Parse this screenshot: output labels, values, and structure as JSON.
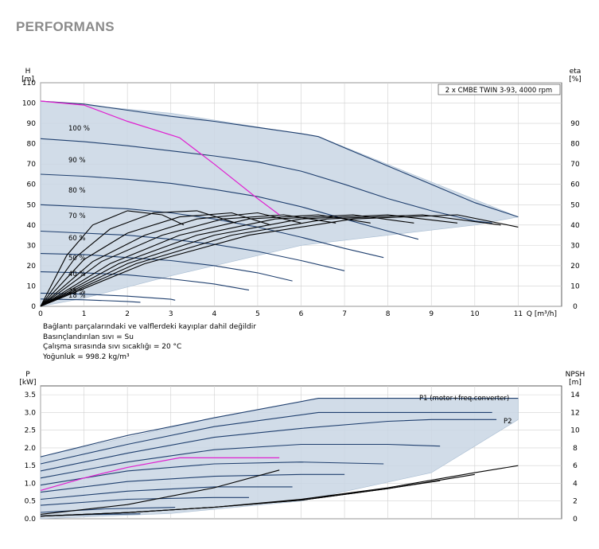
{
  "page_title": "PERFORMANS",
  "notes": [
    "Bağlantı parçalarındaki ve valflerdeki kayıplar dahil değildir",
    "Basınçlandırılan sıvı = Su",
    "Çalışma sırasında sıvı sıcaklığı = 20 °C",
    "Yoğunluk = 998.2 kg/m³"
  ],
  "colors": {
    "curve": "#1f3f6e",
    "envelope": "#c9d6e4",
    "envelope_edge": "#a9bdd2",
    "bep_line": "#e020d0",
    "grid": "#d0d0d0",
    "efficiency": "#000000"
  },
  "chart_data": [
    {
      "type": "line",
      "title": "2 x CMBE TWIN 3-93, 4000 rpm",
      "xlabel": "Q [m³/h]",
      "ylabel": "H\n[m]",
      "y2label": "eta\n[%]",
      "xlim": [
        0,
        12
      ],
      "ylim": [
        0,
        110
      ],
      "y2lim": [
        0,
        110
      ],
      "x_ticks": [
        0,
        1,
        2,
        3,
        4,
        5,
        6,
        7,
        8,
        9,
        10,
        11
      ],
      "y_ticks": [
        0,
        10,
        20,
        30,
        40,
        50,
        60,
        70,
        80,
        90,
        100,
        110
      ],
      "y2_ticks": [
        0,
        10,
        20,
        30,
        40,
        50,
        60,
        70,
        80,
        90
      ],
      "grid": true,
      "speed_labels": [
        "100 %",
        "90 %",
        "80 %",
        "70 %",
        "60 %",
        "50 %",
        "40 %",
        "25 %",
        "18 %"
      ],
      "speed_curves": [
        {
          "name": "100 %",
          "x": [
            0,
            1,
            2,
            3,
            4,
            5,
            6,
            6.4,
            7,
            8,
            9,
            10,
            11
          ],
          "y": [
            101,
            99.5,
            96.5,
            93.5,
            91,
            88,
            85,
            83.5,
            78,
            69,
            60,
            51,
            44
          ]
        },
        {
          "name": "90 %",
          "x": [
            0,
            1,
            2,
            3,
            4,
            5,
            6,
            7,
            8,
            9,
            10,
            10.4
          ],
          "y": [
            82.5,
            81,
            79,
            76.5,
            74,
            71,
            66.5,
            60,
            53,
            47,
            42,
            41
          ]
        },
        {
          "name": "80 %",
          "x": [
            0,
            1,
            2,
            3,
            4,
            5,
            6,
            7,
            8,
            8.7
          ],
          "y": [
            65,
            64,
            62.5,
            60.5,
            57.5,
            54,
            49,
            43,
            37,
            33
          ]
        },
        {
          "name": "70 %",
          "x": [
            0,
            1,
            2,
            3,
            4,
            5,
            6,
            7,
            7.9
          ],
          "y": [
            50,
            49,
            48,
            46,
            43,
            39,
            34,
            28.5,
            24
          ]
        },
        {
          "name": "60 %",
          "x": [
            0,
            1,
            2,
            3,
            4,
            5,
            6,
            7
          ],
          "y": [
            37,
            36,
            35,
            33,
            30.5,
            27,
            22.5,
            17.5
          ]
        },
        {
          "name": "50 %",
          "x": [
            0,
            1,
            2,
            3,
            4,
            5,
            5.8
          ],
          "y": [
            26,
            25.5,
            24,
            22.5,
            20,
            16.5,
            12.5
          ]
        },
        {
          "name": "40 %",
          "x": [
            0,
            1,
            2,
            3,
            4,
            4.8
          ],
          "y": [
            17,
            16.5,
            15.5,
            13.5,
            11,
            8
          ]
        },
        {
          "name": "25 %",
          "x": [
            0,
            1,
            2,
            3,
            3.1
          ],
          "y": [
            6.5,
            6,
            5,
            3.5,
            3
          ]
        },
        {
          "name": "18 %",
          "x": [
            0,
            1,
            2,
            2.3
          ],
          "y": [
            3.6,
            3.2,
            2.4,
            2
          ]
        }
      ],
      "envelope": {
        "x": [
          0,
          3,
          6.4,
          11,
          10,
          6,
          3,
          1,
          0
        ],
        "y": [
          101,
          95,
          83.5,
          44,
          40,
          30,
          15,
          4,
          0
        ]
      },
      "bep_line": {
        "x": [
          0,
          1,
          2,
          3.2,
          4,
          5,
          5.5
        ],
        "y": [
          101,
          99,
          91,
          83,
          70,
          53,
          45
        ]
      },
      "efficiency_curves": [
        {
          "x": [
            0,
            0.6,
            1.2,
            2,
            2.8,
            3.3
          ],
          "y": [
            0,
            25,
            40,
            47,
            45,
            40
          ]
        },
        {
          "x": [
            0,
            0.8,
            1.6,
            2.6,
            3.6,
            4.5
          ],
          "y": [
            0,
            24,
            38,
            46,
            47,
            41
          ]
        },
        {
          "x": [
            0,
            1,
            2,
            3.2,
            4.4,
            5.3
          ],
          "y": [
            0,
            23,
            36,
            44,
            46,
            40
          ]
        },
        {
          "x": [
            0,
            1.2,
            2.4,
            3.6,
            5,
            6
          ],
          "y": [
            0,
            22,
            35,
            43,
            46,
            41
          ]
        },
        {
          "x": [
            0,
            1.4,
            2.8,
            4.2,
            5.6,
            6.8
          ],
          "y": [
            0,
            22,
            35,
            43,
            45,
            41
          ]
        },
        {
          "x": [
            0,
            1.6,
            3.2,
            4.8,
            6.4,
            7.6
          ],
          "y": [
            0,
            21,
            35,
            43,
            45,
            41
          ]
        },
        {
          "x": [
            0,
            1.8,
            3.6,
            5.4,
            7.2,
            8.6
          ],
          "y": [
            0,
            21,
            35,
            43,
            45,
            41
          ]
        },
        {
          "x": [
            0,
            2,
            4,
            6,
            8,
            9.6
          ],
          "y": [
            0,
            21,
            35,
            43,
            45,
            41
          ]
        },
        {
          "x": [
            0,
            2.2,
            4.4,
            6.6,
            8.8,
            10.6
          ],
          "y": [
            0,
            21,
            35,
            43,
            45,
            40
          ]
        },
        {
          "x": [
            0,
            2.4,
            4.8,
            7.2,
            9.6,
            11
          ],
          "y": [
            0,
            21,
            35,
            43,
            45,
            39
          ]
        }
      ]
    },
    {
      "type": "line",
      "title": "",
      "xlabel": "",
      "ylabel": "P\n[kW]",
      "y2label": "NPSH\n[m]",
      "xlim": [
        0,
        12
      ],
      "ylim": [
        0,
        3.75
      ],
      "y2lim": [
        0,
        15
      ],
      "y_ticks": [
        0,
        0.5,
        1.0,
        1.5,
        2.0,
        2.5,
        3.0,
        3.5
      ],
      "y_tick_labels": [
        "0.0",
        "0.5",
        "1.0",
        "1.5",
        "2.0",
        "2.5",
        "3.0",
        "3.5"
      ],
      "y2_ticks": [
        0,
        2,
        4,
        6,
        8,
        10,
        12,
        14
      ],
      "grid": true,
      "series_labels": [
        "P1 (motor+freq.converter)",
        "P2"
      ],
      "power_curves": [
        {
          "x": [
            0,
            2,
            4,
            6.4,
            8,
            10,
            11
          ],
          "y": [
            1.75,
            2.35,
            2.85,
            3.4,
            3.4,
            3.4,
            3.4
          ]
        },
        {
          "x": [
            0,
            2,
            4,
            6.4,
            8,
            10,
            10.4
          ],
          "y": [
            1.55,
            2.1,
            2.6,
            3.0,
            3.0,
            3.0,
            3.0
          ]
        },
        {
          "x": [
            0,
            2,
            4,
            6,
            8,
            9,
            10.5
          ],
          "y": [
            1.35,
            1.85,
            2.3,
            2.55,
            2.75,
            2.8,
            2.8
          ]
        },
        {
          "x": [
            0,
            2,
            4,
            6,
            8,
            9.2
          ],
          "y": [
            1.15,
            1.6,
            1.95,
            2.1,
            2.1,
            2.05
          ]
        },
        {
          "x": [
            0,
            2,
            4,
            6,
            7.9
          ],
          "y": [
            0.95,
            1.35,
            1.55,
            1.6,
            1.55
          ]
        },
        {
          "x": [
            0,
            2,
            4,
            6,
            7
          ],
          "y": [
            0.75,
            1.05,
            1.2,
            1.25,
            1.25
          ]
        },
        {
          "x": [
            0,
            2,
            4,
            5.8
          ],
          "y": [
            0.55,
            0.78,
            0.9,
            0.9
          ]
        },
        {
          "x": [
            0,
            2,
            4,
            4.8
          ],
          "y": [
            0.38,
            0.55,
            0.6,
            0.6
          ]
        },
        {
          "x": [
            0,
            1.5,
            3.1
          ],
          "y": [
            0.18,
            0.28,
            0.32
          ]
        },
        {
          "x": [
            0,
            1.2,
            2.3
          ],
          "y": [
            0.08,
            0.12,
            0.14
          ]
        }
      ],
      "envelope": {
        "x": [
          0,
          4,
          6.4,
          11,
          11,
          9,
          6,
          3,
          1,
          0
        ],
        "y": [
          1.75,
          2.85,
          3.4,
          3.4,
          2.8,
          1.3,
          0.5,
          0.15,
          0.05,
          0.0
        ]
      },
      "bep_line": {
        "x": [
          0,
          1,
          2,
          3.2,
          4.5,
          5.5
        ],
        "y": [
          0.8,
          1.15,
          1.45,
          1.72,
          1.72,
          1.72
        ]
      },
      "npsh_curves": [
        {
          "x": [
            0,
            2,
            4,
            6,
            8,
            10,
            11
          ],
          "y": [
            0.3,
            0.7,
            1.3,
            2.2,
            3.5,
            5.2,
            6.0
          ]
        },
        {
          "x": [
            0,
            2,
            4,
            6,
            8,
            10
          ],
          "y": [
            0.3,
            0.7,
            1.3,
            2.1,
            3.4,
            5.0
          ]
        },
        {
          "x": [
            0,
            2,
            4,
            6,
            8,
            9.2
          ],
          "y": [
            0.3,
            0.7,
            1.3,
            2.1,
            3.4,
            4.3
          ]
        },
        {
          "x": [
            0,
            2,
            4,
            5.5
          ],
          "y": [
            0.5,
            1.6,
            3.5,
            5.5
          ]
        }
      ]
    }
  ]
}
